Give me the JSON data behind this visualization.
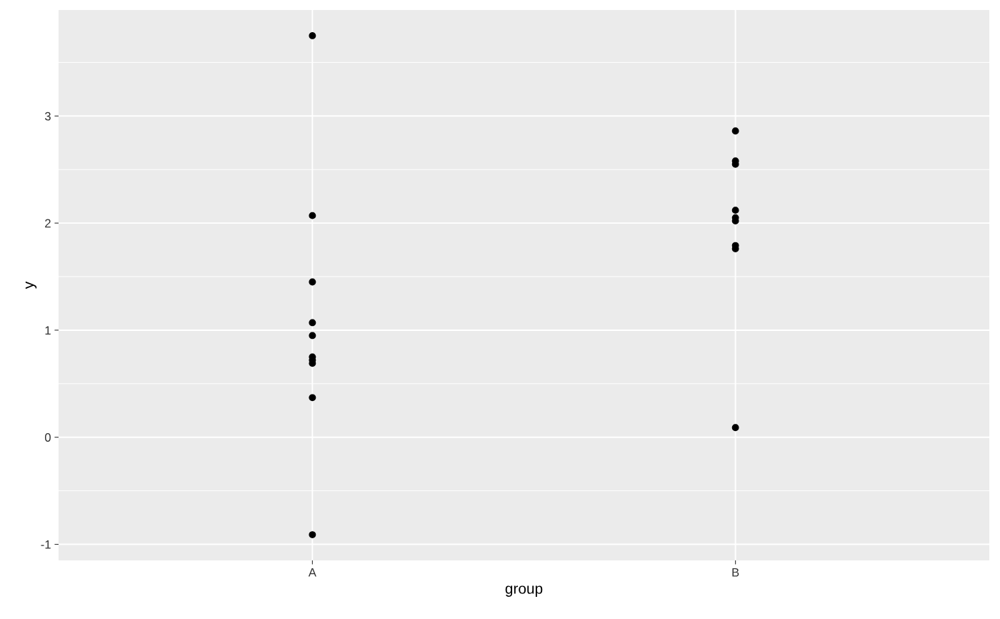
{
  "chart_data": {
    "type": "scatter",
    "xlabel": "group",
    "ylabel": "y",
    "categories": [
      "A",
      "B"
    ],
    "series": [
      {
        "color": "#000000",
        "x": [
          "A",
          "A",
          "A",
          "A",
          "A",
          "A",
          "A",
          "A",
          "A",
          "A"
        ],
        "values": [
          3.75,
          2.07,
          1.45,
          1.07,
          0.95,
          0.75,
          0.72,
          0.69,
          0.37,
          -0.91
        ]
      },
      {
        "color": "#000000",
        "x": [
          "B",
          "B",
          "B",
          "B",
          "B",
          "B",
          "B",
          "B",
          "B"
        ],
        "values": [
          2.86,
          2.58,
          2.55,
          2.12,
          2.05,
          2.02,
          1.79,
          1.76,
          0.09
        ]
      }
    ],
    "ylim": [
      -1.15,
      3.99
    ],
    "yticks": [
      -1,
      0,
      1,
      2,
      3
    ],
    "grid": true,
    "marker": "circle"
  }
}
